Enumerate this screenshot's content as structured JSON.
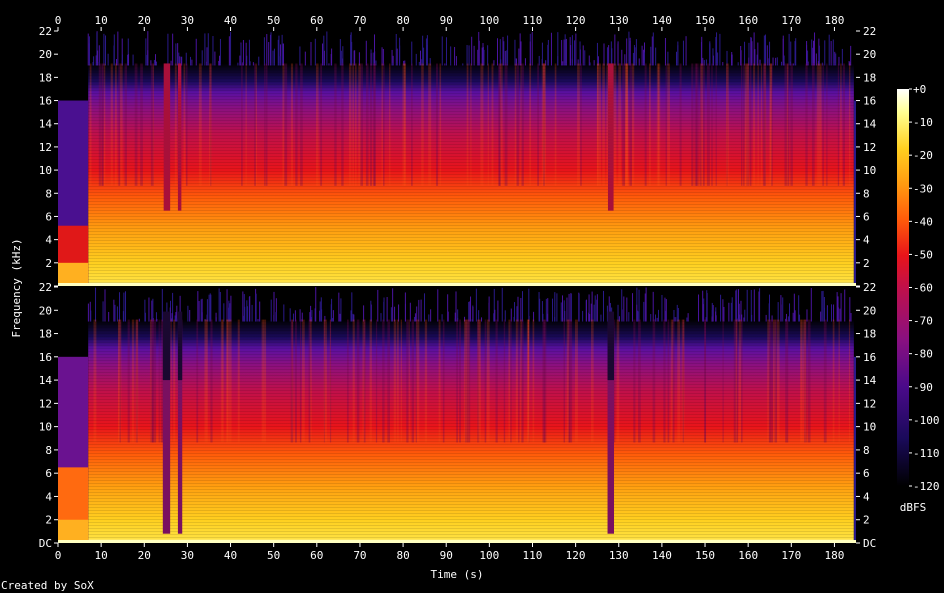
{
  "chart_data": {
    "type": "heatmap",
    "xlabel": "Time (s)",
    "ylabel": "Frequency (kHz)",
    "xlim": [
      0,
      185
    ],
    "ylim_khz": [
      0,
      22
    ],
    "x_ticks": [
      0,
      10,
      20,
      30,
      40,
      50,
      60,
      70,
      80,
      90,
      100,
      110,
      120,
      130,
      140,
      150,
      160,
      170,
      180
    ],
    "y_ticks": [
      {
        "value": 0,
        "label": "DC"
      },
      {
        "value": 2,
        "label": "2"
      },
      {
        "value": 4,
        "label": "4"
      },
      {
        "value": 6,
        "label": "6"
      },
      {
        "value": 8,
        "label": "8"
      },
      {
        "value": 10,
        "label": "10"
      },
      {
        "value": 12,
        "label": "12"
      },
      {
        "value": 14,
        "label": "14"
      },
      {
        "value": 16,
        "label": "16"
      },
      {
        "value": 18,
        "label": "18"
      },
      {
        "value": 20,
        "label": "20"
      },
      {
        "value": 22,
        "label": "22"
      }
    ],
    "channels": 2,
    "colorbar": {
      "label": "dBFS",
      "range": [
        -120,
        0
      ],
      "ticks": [
        {
          "value": 0,
          "label": "+0"
        },
        {
          "value": -10,
          "label": "-10"
        },
        {
          "value": -20,
          "label": "-20"
        },
        {
          "value": -30,
          "label": "-30"
        },
        {
          "value": -40,
          "label": "-40"
        },
        {
          "value": -50,
          "label": "-50"
        },
        {
          "value": -60,
          "label": "-60"
        },
        {
          "value": -70,
          "label": "-70"
        },
        {
          "value": -80,
          "label": "-80"
        },
        {
          "value": -90,
          "label": "-90"
        },
        {
          "value": -100,
          "label": "-100"
        },
        {
          "value": -110,
          "label": "-110"
        },
        {
          "value": -120,
          "label": "-120"
        }
      ],
      "colors": [
        "#000000",
        "#1a0a5a",
        "#4a0a8a",
        "#8a1080",
        "#c0104a",
        "#e8141a",
        "#ff5a0a",
        "#ff9a10",
        "#ffd020",
        "#ffff90",
        "#ffffff"
      ]
    },
    "credit": "Created by SoX"
  }
}
